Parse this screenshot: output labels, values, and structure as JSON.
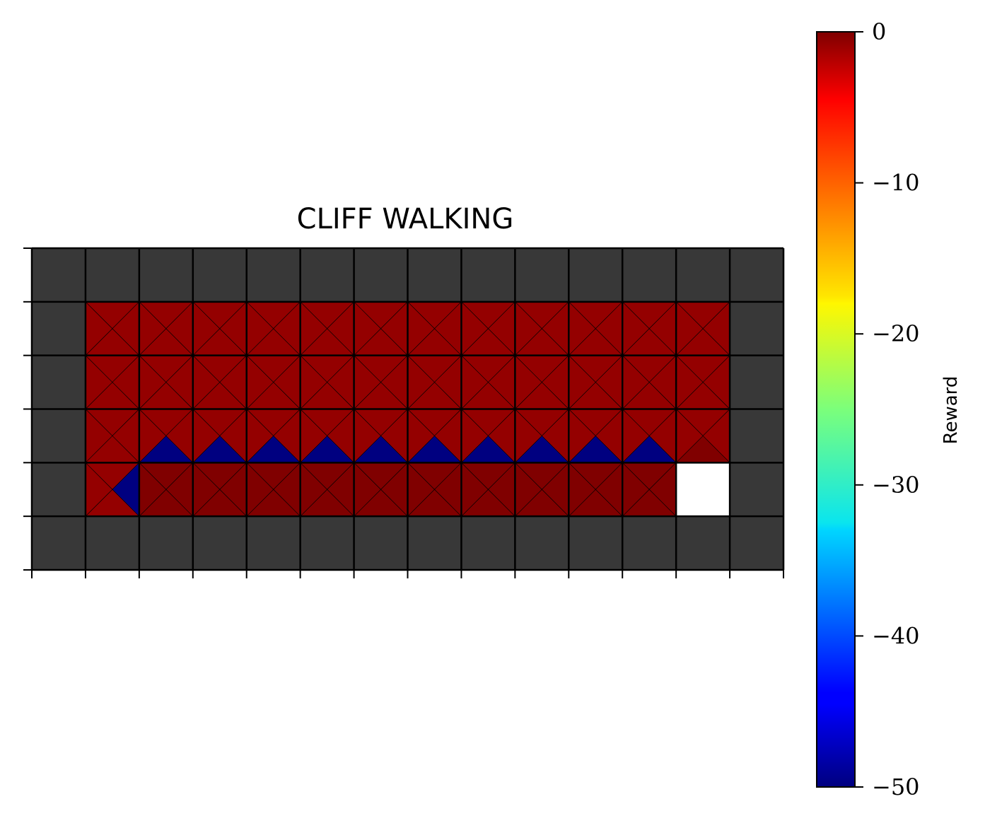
{
  "chart_data": {
    "type": "heatmap",
    "title": "CLIFF WALKING",
    "grid": {
      "rows": 6,
      "cols": 14
    },
    "wall_color": "#383838",
    "goal_color": "#ffffff",
    "colorbar": {
      "label": "Reward",
      "range": [
        -50,
        0
      ],
      "ticks": [
        0,
        -10,
        -20,
        -30,
        -40,
        -50
      ],
      "tick_labels": [
        "0",
        "−10",
        "−20",
        "−30",
        "−40",
        "−50"
      ],
      "colormap": "jet"
    },
    "note_cells": "Each cell holds per-action rewards [up, right, down, left]; null = wall, 'goal' = terminal",
    "cells": [
      [
        null,
        null,
        null,
        null,
        null,
        null,
        null,
        null,
        null,
        null,
        null,
        null,
        null,
        null
      ],
      [
        null,
        [
          -1,
          -1,
          -1,
          -1
        ],
        [
          -1,
          -1,
          -1,
          -1
        ],
        [
          -1,
          -1,
          -1,
          -1
        ],
        [
          -1,
          -1,
          -1,
          -1
        ],
        [
          -1,
          -1,
          -1,
          -1
        ],
        [
          -1,
          -1,
          -1,
          -1
        ],
        [
          -1,
          -1,
          -1,
          -1
        ],
        [
          -1,
          -1,
          -1,
          -1
        ],
        [
          -1,
          -1,
          -1,
          -1
        ],
        [
          -1,
          -1,
          -1,
          -1
        ],
        [
          -1,
          -1,
          -1,
          -1
        ],
        [
          -1,
          -1,
          -1,
          -1
        ],
        null
      ],
      [
        null,
        [
          -1,
          -1,
          -1,
          -1
        ],
        [
          -1,
          -1,
          -1,
          -1
        ],
        [
          -1,
          -1,
          -1,
          -1
        ],
        [
          -1,
          -1,
          -1,
          -1
        ],
        [
          -1,
          -1,
          -1,
          -1
        ],
        [
          -1,
          -1,
          -1,
          -1
        ],
        [
          -1,
          -1,
          -1,
          -1
        ],
        [
          -1,
          -1,
          -1,
          -1
        ],
        [
          -1,
          -1,
          -1,
          -1
        ],
        [
          -1,
          -1,
          -1,
          -1
        ],
        [
          -1,
          -1,
          -1,
          -1
        ],
        [
          -1,
          -1,
          -1,
          -1
        ],
        null
      ],
      [
        null,
        [
          -1,
          -1,
          -1,
          -1
        ],
        [
          -1,
          -1,
          -50,
          -1
        ],
        [
          -1,
          -1,
          -50,
          -1
        ],
        [
          -1,
          -1,
          -50,
          -1
        ],
        [
          -1,
          -1,
          -50,
          -1
        ],
        [
          -1,
          -1,
          -50,
          -1
        ],
        [
          -1,
          -1,
          -50,
          -1
        ],
        [
          -1,
          -1,
          -50,
          -1
        ],
        [
          -1,
          -1,
          -50,
          -1
        ],
        [
          -1,
          -1,
          -50,
          -1
        ],
        [
          -1,
          -1,
          -50,
          -1
        ],
        [
          -1,
          -1,
          0,
          -1
        ],
        null
      ],
      [
        null,
        [
          -1,
          -50,
          -1,
          -1
        ],
        [
          0,
          0,
          0,
          0
        ],
        [
          0,
          0,
          0,
          0
        ],
        [
          0,
          0,
          0,
          0
        ],
        [
          0,
          0,
          0,
          0
        ],
        [
          0,
          0,
          0,
          0
        ],
        [
          0,
          0,
          0,
          0
        ],
        [
          0,
          0,
          0,
          0
        ],
        [
          0,
          0,
          0,
          0
        ],
        [
          0,
          0,
          0,
          0
        ],
        [
          0,
          0,
          0,
          0
        ],
        "goal",
        null
      ],
      [
        null,
        null,
        null,
        null,
        null,
        null,
        null,
        null,
        null,
        null,
        null,
        null,
        null,
        null
      ]
    ]
  }
}
